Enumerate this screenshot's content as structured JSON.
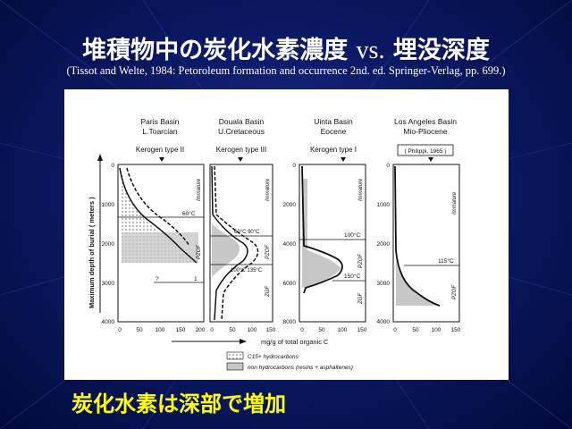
{
  "slide": {
    "title_jp_1": "堆積物中の炭化水素濃度",
    "title_vs": "vs.",
    "title_jp_2": "埋没深度",
    "citation": "(Tissot and Welte, 1984: Petoroleum formation and occurrence 2nd. ed. Springer-Verlag, pp. 699.)",
    "caption": "炭化水素は深部で増加"
  },
  "colors": {
    "background": "#0c1a66",
    "title": "#ffffff",
    "caption": "#ffff00"
  },
  "figure": {
    "y_axis_label": "Maximum depth of burial ( meters )",
    "x_axis_label": "mg/g of total organic C",
    "legend": {
      "item1": "C15+ hydrocarbons",
      "item2": "non hydrocarbons (resins + asphaltenes)"
    },
    "panels": [
      {
        "name": "Paris Basin",
        "age": "L.Toarcian",
        "kerogen": "Kerogen type II",
        "y_ticks": [
          "0",
          "1000",
          "2000",
          "3000",
          "4000"
        ],
        "x_ticks": [
          "0",
          "50",
          "100",
          "150",
          "200"
        ],
        "zone_labels": [
          "Immature",
          "PZOF"
        ],
        "temps": [
          "60°C",
          "1"
        ],
        "extra_label": "?"
      },
      {
        "name": "Douala Basin",
        "age": "U.Cretaceous",
        "kerogen": "Kerogen type III",
        "x_ticks": [
          "0",
          "50",
          "100",
          "150"
        ],
        "zone_labels": [
          "Immature",
          "PZOF",
          "ZGF"
        ],
        "temps": [
          "60°C 90°C",
          "100°C 135°C"
        ]
      },
      {
        "name": "Uinta Basin",
        "age": "Eocene",
        "kerogen": "Kerogen type I",
        "y_ticks": [
          "0",
          "2000",
          "4000",
          "6000",
          "8000"
        ],
        "x_ticks": [
          "0",
          "50",
          "100",
          "150"
        ],
        "zone_labels": [
          "Immature",
          "PZOF",
          "ZGF"
        ],
        "temps": [
          "100°C",
          "150°C"
        ]
      },
      {
        "name": "Los Angeles Basin",
        "age": "Mio-Pliocene",
        "kerogen": "( Philippi, 1965 )",
        "y_ticks": [
          "0",
          "1000",
          "2000",
          "3000",
          "4000"
        ],
        "x_ticks": [
          "0",
          "50",
          "100",
          "150"
        ],
        "zone_labels": [
          "Immature",
          "PZOF"
        ],
        "temps": [
          "115°C"
        ]
      }
    ]
  }
}
